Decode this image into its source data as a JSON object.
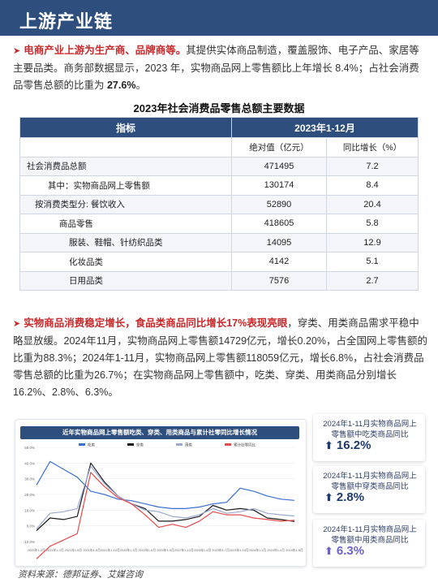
{
  "header": {
    "title": "上游产业链"
  },
  "para1": {
    "highlight": "电商产业上游为生产商、品牌商等。",
    "text": "其提供实体商品制造，覆盖服饰、电子产品、家居等主要品类。商务部数据显示，2023 年，实物商品网上零售额比上年增长 8.4%；占社会消费品零售总额的比重为 ",
    "bold_value": "27.6%",
    "end": "。"
  },
  "table": {
    "title": "2023年社会消费品零售总额主要数据",
    "col_indicator": "指标",
    "col_period": "2023年1-12月",
    "col_abs": "绝对值（亿元）",
    "col_growth": "同比增长（%）",
    "rows": [
      {
        "label": "社会消费品总额",
        "abs": "471495",
        "growth": "7.2"
      },
      {
        "label": "其中：实物商品网上零售额",
        "abs": "130174",
        "growth": "8.4"
      },
      {
        "label": "按消费类型分: 餐饮收入",
        "abs": "52890",
        "growth": "20.4"
      },
      {
        "label": "商品零售",
        "abs": "418605",
        "growth": "5.8"
      },
      {
        "label": "服装、鞋帽、针纺织品类",
        "abs": "14095",
        "growth": "12.9"
      },
      {
        "label": "化妆品类",
        "abs": "4142",
        "growth": "5.1"
      },
      {
        "label": "日用品类",
        "abs": "7576",
        "growth": "2.7"
      }
    ]
  },
  "para2": {
    "highlight": "实物商品消费稳定增长，食品类商品同比增长17%表现亮眼",
    "text": "，穿类、用类商品需求平稳中略显放缓。2024年11月，实物商品网上零售额14729亿元，增长0.20%，占全国网上零售额的比重为88.3%；2024年1-11月，实物商品网上零售额118059亿元，增长6.8%，占社会消费品零售总额的比重为26.7%；在实物商品网上零售额中，吃类、穿类、用类商品分别增长16.2%、2.8%、6.3%。"
  },
  "chart_data": {
    "type": "line",
    "title": "近年实物商品网上零售额吃类、穿类、用类商品与累计社零同比增长情况",
    "legend": [
      "吃类",
      "穿类",
      "用类",
      "累计社零同比"
    ],
    "colors": [
      "#3a6fd4",
      "#1a1a1a",
      "#9aa9cf",
      "#e84b4b"
    ],
    "x": [
      "2020年1-2月",
      "2020年1-5月",
      "2020年1-8月",
      "2020年1-11月",
      "2021年1-2月",
      "2021年1-5月",
      "2021年1-8月",
      "2021年1-11月",
      "2022年1-2月",
      "2022年1-5月",
      "2022年1-8月",
      "2022年1-11月",
      "2023年1-2月",
      "2023年1-5月",
      "2023年1-8月",
      "2023年1-11月",
      "2024年1-2月",
      "2024年1-5月",
      "2024年1-8月",
      "2024年1-11月"
    ],
    "x_tick_labels": [
      "2020年1-2月",
      "2021年1-2月",
      "2021年1-5月",
      "2021年1-9月",
      "2021年1-12月",
      "2022年1-3月",
      "2022年1-6月",
      "2022年1-9月",
      "2022年1-12月",
      "2023年1-4月",
      "2023年1-7月",
      "2023年1-10月",
      "2024年1-1月",
      "2024年1-4月",
      "2024年1-8月"
    ],
    "ylim": [
      -10,
      50
    ],
    "yticks": [
      "50.0%",
      "40.0%",
      "30.0%",
      "20.0%",
      "10.0%",
      "0.0%",
      "-10.0%"
    ],
    "series": [
      {
        "name": "吃类",
        "values": [
          26,
          41,
          36,
          31,
          22,
          20,
          17,
          16,
          14,
          12,
          11,
          11,
          12,
          14,
          15,
          24,
          22,
          19,
          17,
          16.2
        ]
      },
      {
        "name": "穿类",
        "values": [
          -3,
          5,
          4,
          6,
          40,
          28,
          19,
          14,
          11,
          3,
          3,
          4,
          6,
          13,
          10,
          11,
          10,
          5,
          4,
          2.8
        ]
      },
      {
        "name": "用类",
        "values": [
          -2,
          8,
          9,
          11,
          38,
          27,
          19,
          14,
          10,
          9,
          6,
          5,
          7,
          11,
          8,
          9,
          11,
          8,
          7,
          6.3
        ]
      },
      {
        "name": "累计社零同比",
        "values": [
          -21,
          -13,
          -9,
          -5,
          34,
          25,
          18,
          14,
          7,
          -1,
          1,
          -1,
          3,
          9,
          7,
          7,
          5,
          4,
          3,
          3.5
        ]
      }
    ]
  },
  "stats": [
    {
      "label": "2024年1-11月实物商品网上零售额中吃类商品同比",
      "value": "16.2%",
      "color": "#1f3a6e"
    },
    {
      "label": "2024年1-11月实物商品网上零售额中穿类商品同比",
      "value": "2.8%",
      "color": "#1f3a6e"
    },
    {
      "label": "2024年1-11月实物商品网上零售额中用类商品同比",
      "value": "6.3%",
      "color": "#6b63c9"
    }
  ],
  "source": "资料来源：德邦证券、艾媒咨询"
}
